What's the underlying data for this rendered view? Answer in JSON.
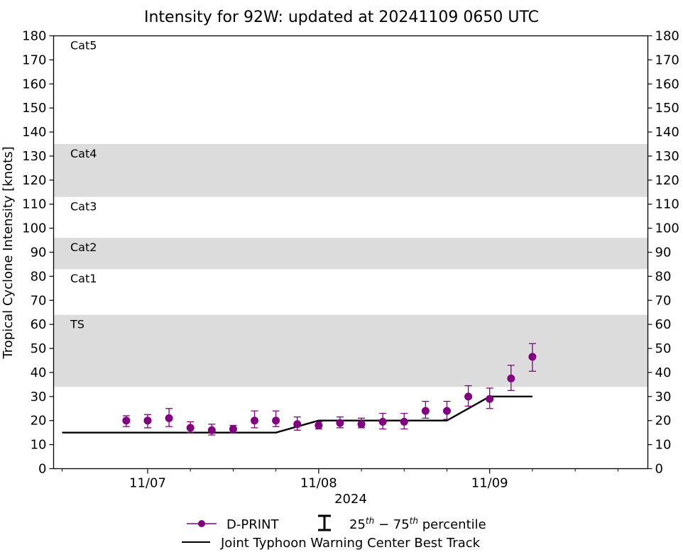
{
  "chart_data": {
    "type": "scatter",
    "title": "Intensity for 92W: updated at 20241109 0650 UTC",
    "xlabel": "2024",
    "ylabel": "Tropical Cyclone Intensity [knots]",
    "ylim": [
      0,
      180
    ],
    "xlim_hours": [
      -13.2,
      70.2
    ],
    "x_ticks": [
      {
        "label": "11/07",
        "hour": 0
      },
      {
        "label": "11/08",
        "hour": 24
      },
      {
        "label": "11/09",
        "hour": 48
      }
    ],
    "x_minor_tick_hours": [
      -12,
      6,
      12,
      18,
      30,
      36,
      42,
      54,
      60,
      66
    ],
    "y_ticks": [
      0,
      10,
      20,
      30,
      40,
      50,
      60,
      70,
      80,
      90,
      100,
      110,
      120,
      130,
      140,
      150,
      160,
      170,
      180
    ],
    "category_bands": [
      {
        "label": "TS",
        "from": 34,
        "to": 64,
        "shaded": true
      },
      {
        "label": "Cat1",
        "from": 64,
        "to": 83,
        "shaded": false
      },
      {
        "label": "Cat2",
        "from": 83,
        "to": 96,
        "shaded": true
      },
      {
        "label": "Cat3",
        "from": 96,
        "to": 113,
        "shaded": false
      },
      {
        "label": "Cat4",
        "from": 113,
        "to": 135,
        "shaded": true
      },
      {
        "label": "Cat5",
        "from": 135,
        "to": 180,
        "shaded": false
      }
    ],
    "series": [
      {
        "name": "D-PRINT",
        "type": "scatter",
        "color": "#800080",
        "points": [
          {
            "x": "11/06 21:00",
            "y": 20,
            "p25": 17.5,
            "p75": 22
          },
          {
            "x": "11/07 00:00",
            "y": 20,
            "p25": 17,
            "p75": 22.5
          },
          {
            "x": "11/07 03:00",
            "y": 21,
            "p25": 17.5,
            "p75": 25
          },
          {
            "x": "11/07 06:00",
            "y": 17,
            "p25": 15,
            "p75": 19.5
          },
          {
            "x": "11/07 09:00",
            "y": 16,
            "p25": 14,
            "p75": 18.5
          },
          {
            "x": "11/07 12:00",
            "y": 16.5,
            "p25": 15,
            "p75": 18
          },
          {
            "x": "11/07 15:00",
            "y": 20,
            "p25": 17,
            "p75": 24
          },
          {
            "x": "11/07 18:00",
            "y": 20,
            "p25": 17.5,
            "p75": 24
          },
          {
            "x": "11/07 21:00",
            "y": 18.5,
            "p25": 16,
            "p75": 21.5
          },
          {
            "x": "11/08 00:00",
            "y": 18,
            "p25": 16.5,
            "p75": 19.5
          },
          {
            "x": "11/08 03:00",
            "y": 19,
            "p25": 17,
            "p75": 21.5
          },
          {
            "x": "11/08 06:00",
            "y": 18.5,
            "p25": 17,
            "p75": 21
          },
          {
            "x": "11/08 09:00",
            "y": 19.5,
            "p25": 16.5,
            "p75": 23
          },
          {
            "x": "11/08 12:00",
            "y": 19.5,
            "p25": 16.5,
            "p75": 23
          },
          {
            "x": "11/08 15:00",
            "y": 24,
            "p25": 21,
            "p75": 28
          },
          {
            "x": "11/08 18:00",
            "y": 24,
            "p25": 20.5,
            "p75": 28
          },
          {
            "x": "11/08 21:00",
            "y": 30,
            "p25": 26,
            "p75": 34.5
          },
          {
            "x": "11/09 00:00",
            "y": 29,
            "p25": 25,
            "p75": 33.5
          },
          {
            "x": "11/09 03:00",
            "y": 37.5,
            "p25": 32.5,
            "p75": 43
          },
          {
            "x": "11/09 06:00",
            "y": 46.5,
            "p25": 40.5,
            "p75": 52
          }
        ]
      },
      {
        "name": "Joint Typhoon Warning Center Best Track",
        "type": "line",
        "color": "#000000",
        "points": [
          {
            "x": "11/06 12:00",
            "y": 15
          },
          {
            "x": "11/07 18:00",
            "y": 15
          },
          {
            "x": "11/08 00:00",
            "y": 20
          },
          {
            "x": "11/08 18:00",
            "y": 20
          },
          {
            "x": "11/09 00:00",
            "y": 30
          },
          {
            "x": "11/09 06:00",
            "y": 30
          }
        ]
      }
    ],
    "legend": {
      "placement": "bottom-center",
      "entries": [
        "D-PRINT",
        "25th - 75th percentile",
        "Joint Typhoon Warning Center Best Track"
      ]
    },
    "colors": {
      "dprint": "#800080",
      "best_track": "#000000",
      "band_shade": "#dcdcdc"
    }
  },
  "legend_text": {
    "dprint": "D-PRINT",
    "pct_a": "25",
    "pct_a_sup": "th",
    "pct_dash": " − ",
    "pct_b": "75",
    "pct_b_sup": "th",
    "pct_tail": " percentile",
    "best_track": "Joint Typhoon Warning Center Best Track"
  }
}
